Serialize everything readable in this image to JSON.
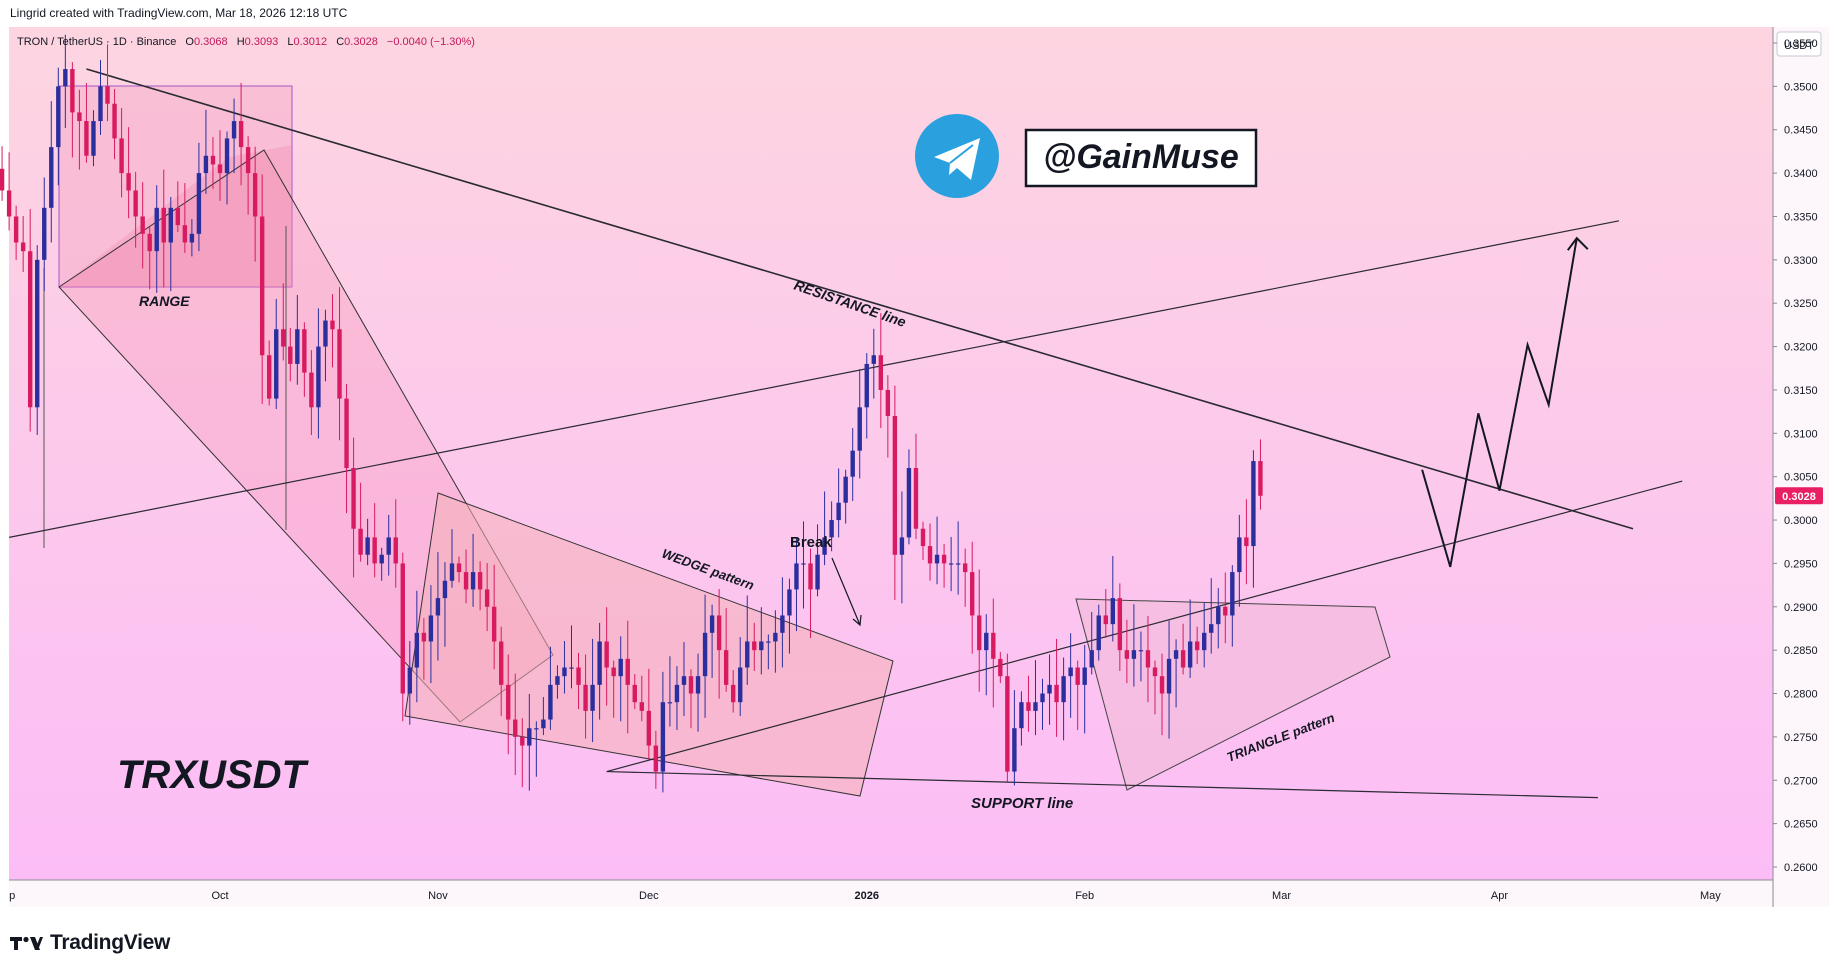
{
  "header": {
    "attribution": "Lingrid created with TradingView.com, Mar 18, 2026 12:18 UTC"
  },
  "legend": {
    "symbol": "TRON / TetherUS · 1D · Binance",
    "open_label": "O",
    "open": "0.3068",
    "high_label": "H",
    "high": "0.3093",
    "low_label": "L",
    "low": "0.3012",
    "close_label": "C",
    "close": "0.3028",
    "change": "−0.0040 (−1.30%)"
  },
  "watermark": {
    "handle": "@GainMuse",
    "ticker": "TRXUSDT",
    "icon": "telegram-icon"
  },
  "footer": {
    "brand": "TradingView",
    "icon": "tradingview-logo-icon"
  },
  "colors": {
    "up": "#2b2f9e",
    "down": "#d81b60",
    "background_top": "#fdd5e0",
    "background_bottom": "#fcbdf6",
    "price_badge": "#e91e63",
    "telegram": "#2aa1de"
  },
  "annotations": {
    "range": "RANGE",
    "resistance": "RESISTANCE line",
    "wedge": "WEDGE pattern",
    "break": "Break",
    "support": "SUPPORT line",
    "triangle": "TRIANGLE pattern"
  },
  "chart_data": {
    "type": "candlestick",
    "currency_label": "USDT",
    "y_ticks": [
      "0.3550",
      "0.3500",
      "0.3450",
      "0.3400",
      "0.3350",
      "0.3300",
      "0.3250",
      "0.3200",
      "0.3150",
      "0.3100",
      "0.3050",
      "0.3000",
      "0.2950",
      "0.2900",
      "0.2850",
      "0.2800",
      "0.2750",
      "0.2700",
      "0.2650",
      "0.2600"
    ],
    "ylim": [
      0.2585,
      0.3565
    ],
    "x_ticks": [
      {
        "label": "p",
        "date": "2025-09-01"
      },
      {
        "label": "Oct",
        "date": "2025-10-01"
      },
      {
        "label": "Nov",
        "date": "2025-11-01"
      },
      {
        "label": "Dec",
        "date": "2025-12-01"
      },
      {
        "label": "2026",
        "date": "2026-01-01"
      },
      {
        "label": "Feb",
        "date": "2026-02-01"
      },
      {
        "label": "Mar",
        "date": "2026-03-01"
      },
      {
        "label": "Apr",
        "date": "2026-04-01"
      },
      {
        "label": "May",
        "date": "2026-05-01"
      }
    ],
    "last_price": "0.3028",
    "closes": [
      0.3405,
      0.338,
      0.335,
      0.332,
      0.331,
      0.313,
      0.33,
      0.336,
      0.343,
      0.35,
      0.352,
      0.347,
      0.346,
      0.342,
      0.346,
      0.35,
      0.348,
      0.344,
      0.34,
      0.338,
      0.335,
      0.333,
      0.331,
      0.336,
      0.332,
      0.336,
      0.334,
      0.332,
      0.333,
      0.34,
      0.342,
      0.341,
      0.34,
      0.344,
      0.346,
      0.343,
      0.34,
      0.335,
      0.319,
      0.314,
      0.322,
      0.32,
      0.318,
      0.322,
      0.317,
      0.313,
      0.32,
      0.323,
      0.322,
      0.314,
      0.306,
      0.299,
      0.296,
      0.298,
      0.295,
      0.296,
      0.298,
      0.295,
      0.28,
      0.283,
      0.287,
      0.286,
      0.289,
      0.291,
      0.293,
      0.295,
      0.294,
      0.292,
      0.294,
      0.292,
      0.29,
      0.286,
      0.281,
      0.277,
      0.275,
      0.274,
      0.276,
      0.276,
      0.277,
      0.281,
      0.282,
      0.283,
      0.283,
      0.281,
      0.278,
      0.281,
      0.286,
      0.283,
      0.282,
      0.284,
      0.281,
      0.279,
      0.278,
      0.274,
      0.271,
      0.279,
      0.279,
      0.281,
      0.282,
      0.28,
      0.282,
      0.287,
      0.289,
      0.285,
      0.281,
      0.279,
      0.283,
      0.286,
      0.285,
      0.286,
      0.286,
      0.287,
      0.289,
      0.292,
      0.295,
      0.295,
      0.292,
      0.296,
      0.298,
      0.3,
      0.302,
      0.305,
      0.308,
      0.313,
      0.318,
      0.319,
      0.315,
      0.312,
      0.296,
      0.298,
      0.306,
      0.299,
      0.297,
      0.295,
      0.296,
      0.295,
      0.295,
      0.295,
      0.294,
      0.289,
      0.285,
      0.287,
      0.284,
      0.282,
      0.271,
      0.276,
      0.279,
      0.278,
      0.279,
      0.28,
      0.281,
      0.279,
      0.282,
      0.283,
      0.281,
      0.283,
      0.285,
      0.289,
      0.288,
      0.291,
      0.285,
      0.284,
      0.285,
      0.285,
      0.283,
      0.282,
      0.28,
      0.284,
      0.285,
      0.283,
      0.286,
      0.285,
      0.287,
      0.288,
      0.29,
      0.289,
      0.294,
      0.298,
      0.297,
      0.3068,
      0.3028
    ],
    "projection_path": [
      [
        "2026-03-21",
        0.3058
      ],
      [
        "2026-03-25",
        0.2946
      ],
      [
        "2026-03-29",
        0.3123
      ],
      [
        "2026-04-01",
        0.3034
      ],
      [
        "2026-04-05",
        0.3202
      ],
      [
        "2026-04-08",
        0.3133
      ],
      [
        "2026-04-12",
        0.3325
      ]
    ],
    "trendlines": [
      {
        "name": "resistance",
        "from": [
          "2025-09-12",
          0.352
        ],
        "to": [
          "2026-04-20",
          0.299
        ]
      },
      {
        "name": "rising line",
        "from": [
          "2025-09-01",
          0.298
        ],
        "to": [
          "2026-04-18",
          0.3345
        ]
      },
      {
        "name": "lower rising line",
        "from": [
          "2025-11-25",
          0.271
        ],
        "to": [
          "2026-04-27",
          0.3045
        ]
      },
      {
        "name": "support",
        "from": [
          "2025-11-25",
          0.271
        ],
        "to": [
          "2026-04-15",
          0.268
        ]
      }
    ]
  }
}
